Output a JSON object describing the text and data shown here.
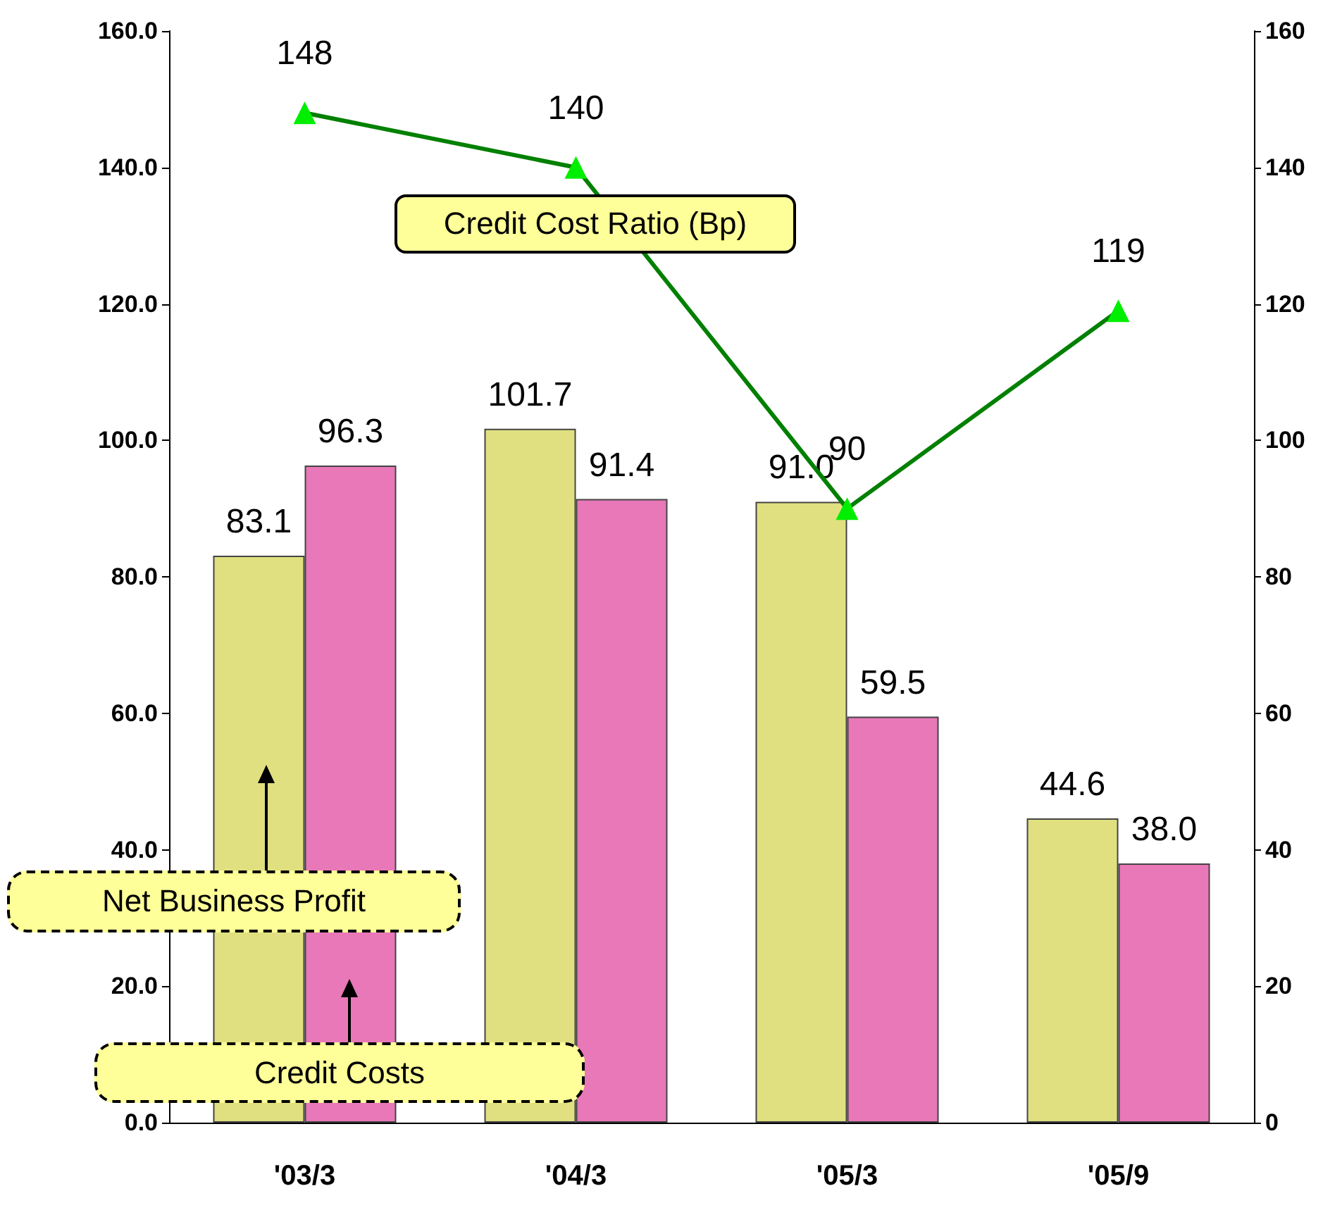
{
  "chart_data": {
    "type": "bar",
    "categories": [
      "'03/3",
      "'04/3",
      "'05/3",
      "'05/9"
    ],
    "series": [
      {
        "name": "Net Business Profit",
        "color": "#e0e080",
        "values": [
          83.1,
          101.7,
          91.0,
          44.6
        ],
        "value_labels": [
          "83.1",
          "101.7",
          "91.0",
          "44.6"
        ]
      },
      {
        "name": "Credit Costs",
        "color": "#e878b8",
        "values": [
          96.3,
          91.4,
          59.5,
          38.0
        ],
        "value_labels": [
          "96.3",
          "91.4",
          "59.5",
          "38.0"
        ]
      },
      {
        "name": "Credit Cost Ratio (Bp)",
        "type": "line",
        "axis": "y2",
        "color": "#008000",
        "values": [
          148,
          140,
          90,
          119
        ],
        "value_labels": [
          "148",
          "140",
          "90",
          "119"
        ]
      }
    ],
    "ylim": [
      0,
      160
    ],
    "yticks": [
      {
        "value": 0,
        "label": "0.0"
      },
      {
        "value": 20,
        "label": "20.0"
      },
      {
        "value": 40,
        "label": "40.0"
      },
      {
        "value": 60,
        "label": "60.0"
      },
      {
        "value": 80,
        "label": "80.0"
      },
      {
        "value": 100,
        "label": "100.0"
      },
      {
        "value": 120,
        "label": "120.0"
      },
      {
        "value": 140,
        "label": "140.0"
      },
      {
        "value": 160,
        "label": "160.0"
      }
    ],
    "y2lim": [
      0,
      160
    ],
    "y2ticks": [
      0,
      20,
      40,
      60,
      80,
      100,
      120,
      140,
      160
    ],
    "grid": false,
    "legend": false,
    "marker": "triangle",
    "line_style": "solid"
  }
}
